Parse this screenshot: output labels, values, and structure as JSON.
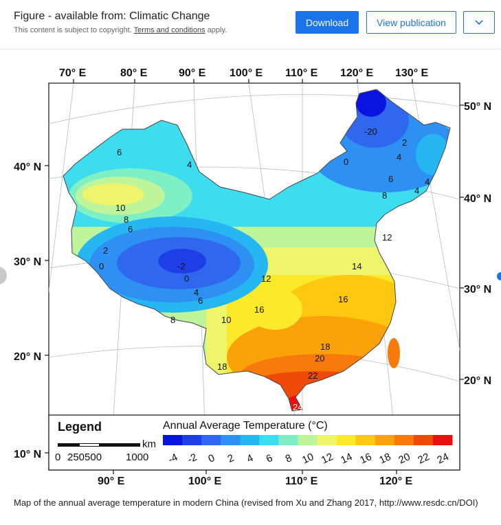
{
  "header": {
    "title": "Figure - available from: Climatic Change",
    "notice_prefix": "This content is subject to copyright.",
    "notice_link": "Terms and conditions",
    "notice_suffix": "apply.",
    "download_label": "Download",
    "view_label": "View publication",
    "more_icon": "chevron-down-icon",
    "accent": "#1a73e8"
  },
  "map": {
    "top_lon_labels": [
      "70° E",
      "80° E",
      "90° E",
      "100° E",
      "110° E",
      "120° E",
      "130° E"
    ],
    "bottom_lon_labels": [
      "90° E",
      "100° E",
      "110° E",
      "120° E"
    ],
    "left_lat_labels": [
      "40° N",
      "30° N",
      "20° N",
      "10° N"
    ],
    "right_lat_labels": [
      "50° N",
      "40° N",
      "30° N",
      "20° N"
    ],
    "contour_labels": [
      "6",
      "4",
      "10",
      "8",
      "6",
      "2",
      "0",
      "-2",
      "0",
      "4",
      "6",
      "8",
      "10",
      "12",
      "16",
      "14",
      "12",
      "16",
      "18",
      "20",
      "22",
      "24",
      "18",
      "-20",
      "2",
      "4",
      "0",
      "6",
      "8",
      "4",
      "4"
    ],
    "legend_title": "Legend",
    "scale_unit": "km",
    "scale_ticks": [
      "0",
      "250500",
      "1000"
    ],
    "colorbar_title": "Annual Average Temperature (°C)",
    "colorbar_ticks": [
      "-4",
      "-2",
      "0",
      "2",
      "4",
      "6",
      "8",
      "10",
      "12",
      "14",
      "16",
      "18",
      "20",
      "22",
      "24"
    ],
    "colorbar_colors": [
      "#0a14e0",
      "#1e3ee6",
      "#2f68ee",
      "#2e90f2",
      "#26b6f2",
      "#3ddcef",
      "#7ff0c4",
      "#bef49a",
      "#eff56a",
      "#fbe92c",
      "#fdc80f",
      "#fba20a",
      "#f77b0a",
      "#f04a0a",
      "#e81212"
    ]
  },
  "caption": "Map of the annual average temperature in modern China (revised from Xu and Zhang 2017, http://www.resdc.cn/DOI)"
}
